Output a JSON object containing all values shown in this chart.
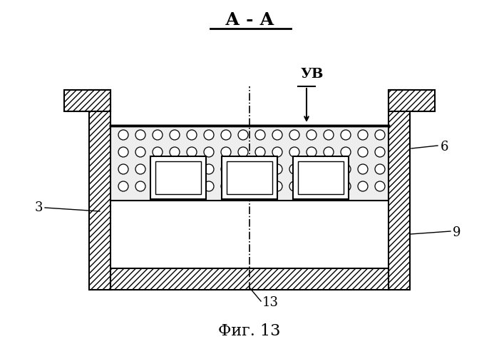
{
  "title": "А - А",
  "fig_label": "Фиг. 13",
  "background": "#ffffff",
  "line_color": "#000000",
  "label_3": "3",
  "label_6": "6",
  "label_9": "9",
  "label_13": "13",
  "label_uv": "УВ"
}
